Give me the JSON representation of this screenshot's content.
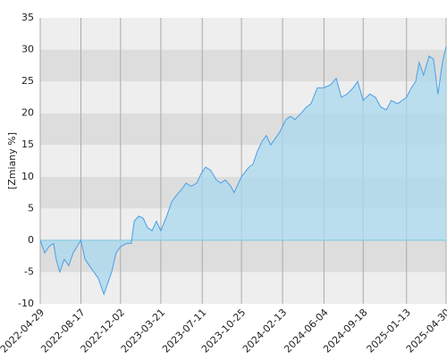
{
  "chart_data": {
    "type": "area",
    "ylabel": "[Zmiany %]",
    "ylim": [
      -10,
      35
    ],
    "yticks": [
      -10,
      -5,
      0,
      5,
      10,
      15,
      20,
      25,
      30,
      35
    ],
    "xlim": [
      "2022-04-29",
      "2025-04-30"
    ],
    "xticks": [
      "2022-04-29",
      "2022-08-17",
      "2022-12-02",
      "2023-03-21",
      "2023-07-11",
      "2023-10-25",
      "2024-02-13",
      "2024-06-04",
      "2024-09-18",
      "2025-01-13",
      "2025-04-30"
    ],
    "grid": true,
    "x": [
      "2022-04-29",
      "2022-05-11",
      "2022-05-23",
      "2022-06-04",
      "2022-06-11",
      "2022-06-21",
      "2022-07-03",
      "2022-07-15",
      "2022-07-27",
      "2022-08-17",
      "2022-08-28",
      "2022-09-09",
      "2022-09-21",
      "2022-10-03",
      "2022-10-18",
      "2022-10-27",
      "2022-11-08",
      "2022-11-20",
      "2022-12-02",
      "2022-12-19",
      "2022-12-31",
      "2023-01-08",
      "2023-01-20",
      "2023-02-01",
      "2023-02-13",
      "2023-02-25",
      "2023-03-09",
      "2023-03-21",
      "2023-04-07",
      "2023-04-19",
      "2023-05-01",
      "2023-05-16",
      "2023-05-28",
      "2023-06-11",
      "2023-06-26",
      "2023-07-08",
      "2023-07-20",
      "2023-08-03",
      "2023-08-18",
      "2023-08-30",
      "2023-09-11",
      "2023-09-26",
      "2023-10-05",
      "2023-10-17",
      "2023-10-25",
      "2023-11-14",
      "2023-11-25",
      "2023-12-07",
      "2023-12-19",
      "2023-12-31",
      "2024-01-12",
      "2024-01-24",
      "2024-02-05",
      "2024-02-22",
      "2024-03-05",
      "2024-03-18",
      "2024-04-03",
      "2024-04-18",
      "2024-04-30",
      "2024-05-17",
      "2024-06-04",
      "2024-06-22",
      "2024-07-07",
      "2024-07-21",
      "2024-08-05",
      "2024-08-22",
      "2024-09-03",
      "2024-09-18",
      "2024-10-06",
      "2024-10-21",
      "2024-11-04",
      "2024-11-19",
      "2024-12-03",
      "2024-12-20",
      "2025-01-01",
      "2025-01-13",
      "2025-01-26",
      "2025-02-07",
      "2025-02-16",
      "2025-02-28",
      "2025-03-15",
      "2025-03-27",
      "2025-04-08",
      "2025-04-20",
      "2025-04-30"
    ],
    "series": [
      {
        "color": "#4a9fe6",
        "fill": "#a8d8ee",
        "values": [
          0,
          -2,
          -1,
          -0.5,
          -3,
          -5,
          -3,
          -4,
          -2,
          0,
          -3,
          -4,
          -5,
          -6,
          -8.5,
          -7,
          -5,
          -2,
          -1,
          -0.5,
          -0.5,
          3,
          3.8,
          3.5,
          2,
          1.5,
          3,
          1.5,
          4,
          6,
          7,
          8,
          9,
          8.5,
          9,
          10.5,
          11.5,
          11,
          9.5,
          9,
          9.5,
          8.5,
          7.5,
          9,
          10,
          11.5,
          12,
          14,
          15.5,
          16.5,
          15,
          16,
          17,
          19,
          19.5,
          19,
          20,
          21,
          21.5,
          24,
          24,
          24.5,
          25.5,
          22.5,
          23,
          24,
          25,
          22,
          23,
          22.5,
          21,
          20.5,
          22,
          21.5,
          22,
          22.5,
          24,
          25,
          28,
          26,
          29,
          28.5,
          23,
          28,
          30.5
        ]
      }
    ]
  }
}
